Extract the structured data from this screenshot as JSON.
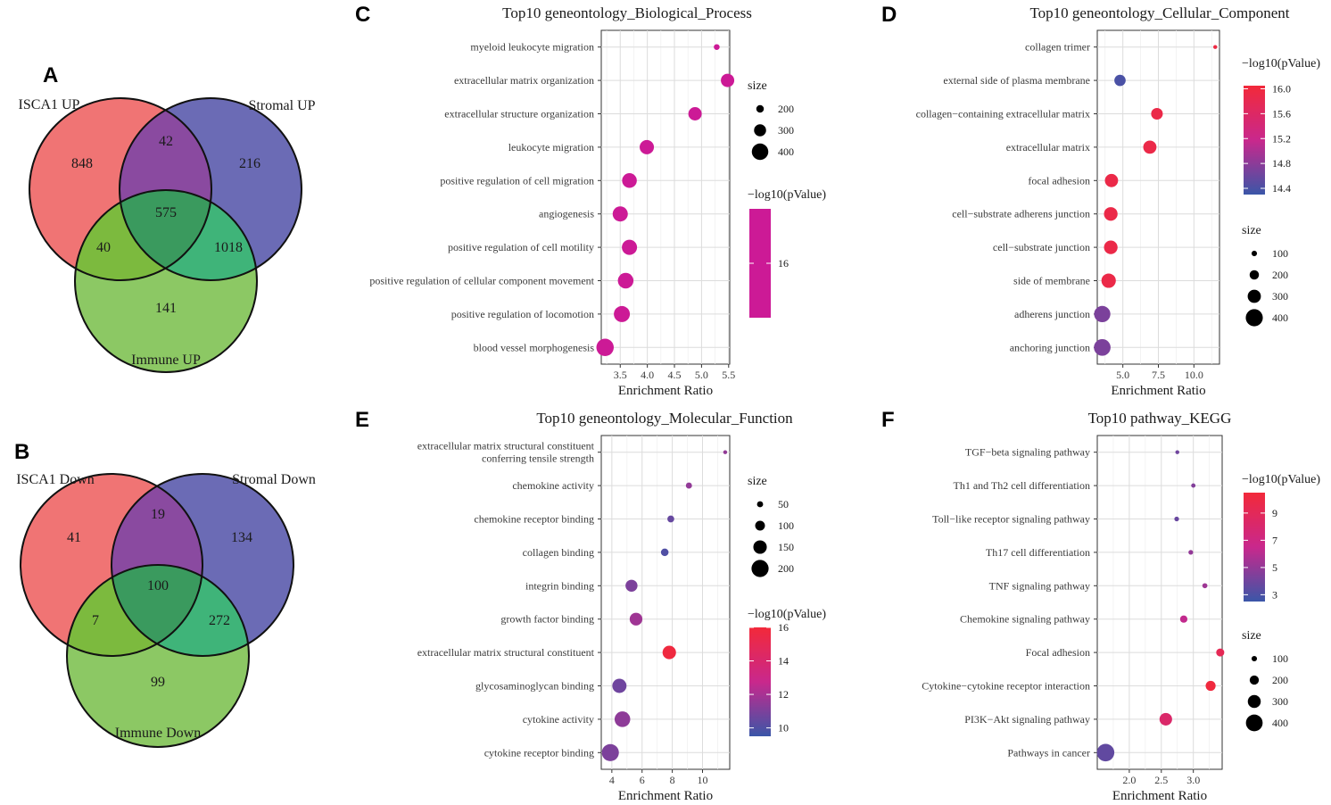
{
  "figure": {
    "panel_labels": {
      "A": "A",
      "B": "B",
      "C": "C",
      "D": "D",
      "E": "E",
      "F": "F"
    }
  },
  "venn": [
    {
      "panel": "A",
      "sets": [
        {
          "label": "ISCA1 UP",
          "color": "#f07474"
        },
        {
          "label": "Stromal UP",
          "color": "#6b6bb5"
        },
        {
          "label": "Immune UP",
          "color": "#8cc864"
        }
      ],
      "regions": {
        "only_1": "848",
        "only_2": "216",
        "only_3": "141",
        "r12": "42",
        "r13": "40",
        "r23": "1018",
        "r123": "575"
      }
    },
    {
      "panel": "B",
      "sets": [
        {
          "label": "ISCA1 Down",
          "color": "#f07474"
        },
        {
          "label": "Stromal Down",
          "color": "#6b6bb5"
        },
        {
          "label": "Immune Down",
          "color": "#8cc864"
        }
      ],
      "regions": {
        "only_1": "41",
        "only_2": "134",
        "only_3": "99",
        "r12": "19",
        "r13": "7",
        "r23": "272",
        "r123": "100"
      }
    }
  ],
  "chart_data": [
    {
      "panel": "C",
      "type": "scatter",
      "title": "Top10 geneontology_Biological_Process",
      "xlabel": "Enrichment Ratio",
      "xlim": [
        3.15,
        5.52
      ],
      "xticks": [
        3.5,
        4.0,
        4.5,
        5.0,
        5.5
      ],
      "xtick_labels": [
        "3.5",
        "4.0",
        "4.5",
        "5.0",
        "5.5"
      ],
      "terms": [
        {
          "label": "myeloid leukocyte migration",
          "x": 5.28,
          "size": 160,
          "pvalue": 16
        },
        {
          "label": "extracellular matrix organization",
          "x": 5.48,
          "size": 330,
          "pvalue": 16
        },
        {
          "label": "extracellular structure organization",
          "x": 4.88,
          "size": 330,
          "pvalue": 16
        },
        {
          "label": "leukocyte migration",
          "x": 3.99,
          "size": 350,
          "pvalue": 16
        },
        {
          "label": "positive regulation of cell migration",
          "x": 3.67,
          "size": 360,
          "pvalue": 16
        },
        {
          "label": "angiogenesis",
          "x": 3.5,
          "size": 370,
          "pvalue": 16
        },
        {
          "label": "positive regulation of cell motility",
          "x": 3.67,
          "size": 370,
          "pvalue": 16
        },
        {
          "label": "positive regulation of cellular component movement",
          "x": 3.6,
          "size": 380,
          "pvalue": 16
        },
        {
          "label": "positive regulation of locomotion",
          "x": 3.53,
          "size": 390,
          "pvalue": 16
        },
        {
          "label": "blood vessel morphogenesis",
          "x": 3.22,
          "size": 420,
          "pvalue": 16
        }
      ],
      "size_legend": {
        "title": "size",
        "values": [
          200,
          300,
          400
        ],
        "labels": [
          "200",
          "300",
          "400"
        ],
        "smin": 150,
        "smax": 430,
        "rmin": 3,
        "rmax": 10
      },
      "color_legend": {
        "title": "−log10(pValue)",
        "ticks": [
          16
        ],
        "tick_labels": [
          "16"
        ],
        "range": [
          15.3,
          16.7
        ],
        "low": "#cc1a96",
        "high": "#cc1a96",
        "position": "right"
      }
    },
    {
      "panel": "D",
      "type": "scatter",
      "title": "Top10 geneontology_Cellular_Component",
      "xlabel": "Enrichment Ratio",
      "xlim": [
        3.2,
        11.8
      ],
      "xticks": [
        5.0,
        7.5,
        10.0
      ],
      "xtick_labels": [
        "5.0",
        "7.5",
        "10.0"
      ],
      "terms": [
        {
          "label": "collagen trimer",
          "x": 11.5,
          "size": 60,
          "pvalue": 15.95
        },
        {
          "label": "external side of plasma membrane",
          "x": 4.8,
          "size": 250,
          "pvalue": 14.4
        },
        {
          "label": "collagen−containing extracellular matrix",
          "x": 7.4,
          "size": 260,
          "pvalue": 15.9
        },
        {
          "label": "extracellular matrix",
          "x": 6.9,
          "size": 300,
          "pvalue": 15.9
        },
        {
          "label": "focal adhesion",
          "x": 4.2,
          "size": 300,
          "pvalue": 15.9
        },
        {
          "label": "cell−substrate adherens junction",
          "x": 4.15,
          "size": 310,
          "pvalue": 15.9
        },
        {
          "label": "cell−substrate junction",
          "x": 4.15,
          "size": 310,
          "pvalue": 15.9
        },
        {
          "label": "side of membrane",
          "x": 4.0,
          "size": 330,
          "pvalue": 15.9
        },
        {
          "label": "adherens junction",
          "x": 3.55,
          "size": 380,
          "pvalue": 14.7
        },
        {
          "label": "anchoring junction",
          "x": 3.55,
          "size": 390,
          "pvalue": 14.7
        }
      ],
      "size_legend": {
        "title": "size",
        "values": [
          100,
          200,
          300,
          400
        ],
        "labels": [
          "100",
          "200",
          "300",
          "400"
        ],
        "smin": 50,
        "smax": 420,
        "rmin": 2,
        "rmax": 10
      },
      "color_legend": {
        "title": "−log10(pValue)",
        "ticks": [
          14.4,
          14.8,
          15.2,
          15.6,
          16.0
        ],
        "tick_labels": [
          "14.4",
          "14.8",
          "15.2",
          "15.6",
          "16.0"
        ],
        "range": [
          14.3,
          16.05
        ],
        "low": "#3a56a8",
        "high": "#f2293a",
        "position": "right"
      }
    },
    {
      "panel": "E",
      "type": "scatter",
      "title": "Top10 geneontology_Molecular_Function",
      "xlabel": "Enrichment Ratio",
      "xlim": [
        3.3,
        11.8
      ],
      "xticks": [
        4,
        6,
        8,
        10
      ],
      "xtick_labels": [
        "4",
        "6",
        "8",
        "10"
      ],
      "terms": [
        {
          "label": "extracellular matrix structural constituent\nconferring tensile strength",
          "x": 11.5,
          "size": 20,
          "pvalue": 11.5
        },
        {
          "label": "chemokine activity",
          "x": 9.1,
          "size": 50,
          "pvalue": 11.5
        },
        {
          "label": "chemokine receptor binding",
          "x": 7.9,
          "size": 60,
          "pvalue": 10.5
        },
        {
          "label": "collagen binding",
          "x": 7.5,
          "size": 70,
          "pvalue": 10
        },
        {
          "label": "integrin binding",
          "x": 5.3,
          "size": 130,
          "pvalue": 11
        },
        {
          "label": "growth factor binding",
          "x": 5.6,
          "size": 140,
          "pvalue": 11.8
        },
        {
          "label": "extracellular matrix structural constituent",
          "x": 7.8,
          "size": 150,
          "pvalue": 15.8
        },
        {
          "label": "glycosaminoglycan binding",
          "x": 4.5,
          "size": 160,
          "pvalue": 10.7
        },
        {
          "label": "cytokine activity",
          "x": 4.7,
          "size": 180,
          "pvalue": 11.4
        },
        {
          "label": "cytokine receptor binding",
          "x": 3.9,
          "size": 200,
          "pvalue": 11
        },
        {
          "label": "",
          "x": 0,
          "size": 0,
          "pvalue": 0
        }
      ],
      "size_legend": {
        "title": "size",
        "values": [
          50,
          100,
          150,
          200
        ],
        "labels": [
          "50",
          "100",
          "150",
          "200"
        ],
        "smin": 15,
        "smax": 210,
        "rmin": 2,
        "rmax": 10
      },
      "color_legend": {
        "title": "−log10(pValue)",
        "ticks": [
          10,
          12,
          14,
          16
        ],
        "tick_labels": [
          "10",
          "12",
          "14",
          "16"
        ],
        "range": [
          9.5,
          16.0
        ],
        "low": "#3a56a8",
        "high": "#f2293a",
        "position": "right"
      }
    },
    {
      "panel": "F",
      "type": "scatter",
      "title": "Top10 pathway_KEGG",
      "xlabel": "Enrichment Ratio",
      "xlim": [
        1.5,
        3.45
      ],
      "xticks": [
        2.0,
        2.5,
        3.0
      ],
      "xtick_labels": [
        "2.0",
        "2.5",
        "3.0"
      ],
      "terms": [
        {
          "label": "TGF−beta signaling pathway",
          "x": 2.75,
          "size": 60,
          "pvalue": 4
        },
        {
          "label": "Th1 and Th2 cell differentiation",
          "x": 3.0,
          "size": 70,
          "pvalue": 4.5
        },
        {
          "label": "Toll−like receptor signaling pathway",
          "x": 2.74,
          "size": 80,
          "pvalue": 3.8
        },
        {
          "label": "Th17 cell differentiation",
          "x": 2.96,
          "size": 80,
          "pvalue": 5
        },
        {
          "label": "TNF signaling pathway",
          "x": 3.18,
          "size": 90,
          "pvalue": 5.3
        },
        {
          "label": "Chemokine signaling pathway",
          "x": 2.85,
          "size": 150,
          "pvalue": 6.3
        },
        {
          "label": "Focal adhesion",
          "x": 3.42,
          "size": 170,
          "pvalue": 9.2
        },
        {
          "label": "Cytokine−cytokine receptor interaction",
          "x": 3.27,
          "size": 220,
          "pvalue": 10.3
        },
        {
          "label": "PI3K−Akt signaling pathway",
          "x": 2.57,
          "size": 290,
          "pvalue": 8.2
        },
        {
          "label": "Pathways in cancer",
          "x": 1.63,
          "size": 420,
          "pvalue": 3.6
        }
      ],
      "size_legend": {
        "title": "size",
        "values": [
          100,
          200,
          300,
          400
        ],
        "labels": [
          "100",
          "200",
          "300",
          "400"
        ],
        "smin": 50,
        "smax": 430,
        "rmin": 2,
        "rmax": 10
      },
      "color_legend": {
        "title": "−log10(pValue)",
        "ticks": [
          3,
          5,
          7,
          9
        ],
        "tick_labels": [
          "3",
          "5",
          "7",
          "9"
        ],
        "range": [
          2.5,
          10.5
        ],
        "low": "#3a56a8",
        "high": "#f2293a",
        "position": "right"
      }
    }
  ]
}
